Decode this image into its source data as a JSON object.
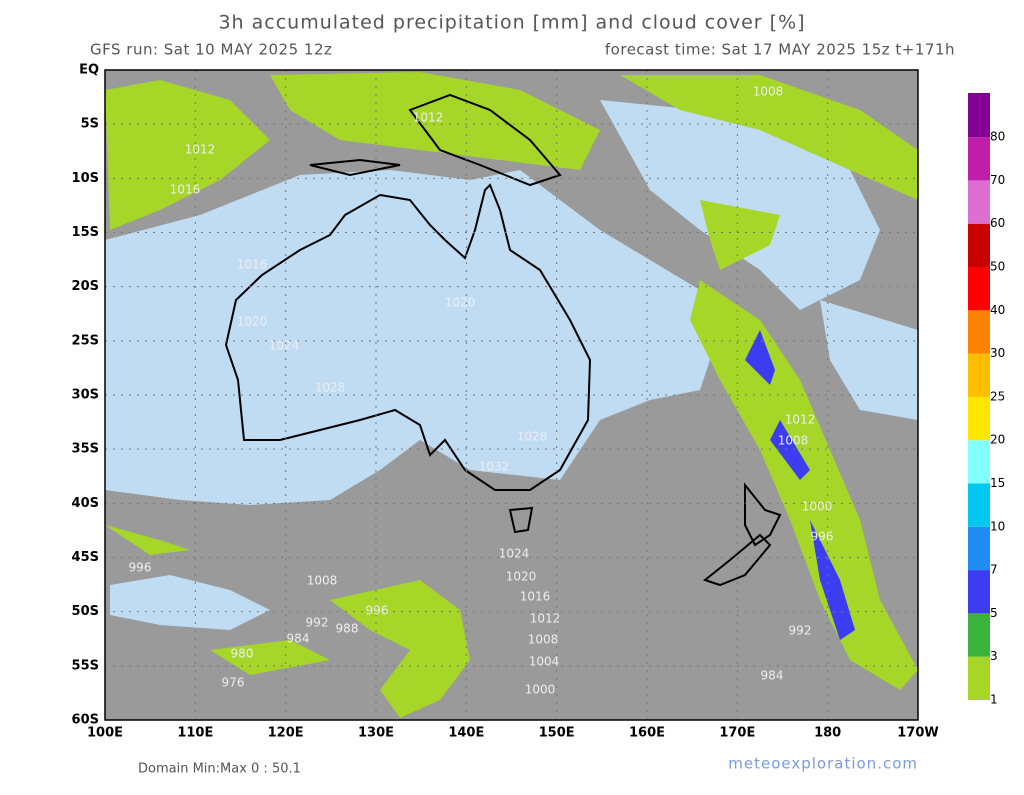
{
  "header": {
    "title": "3h accumulated precipitation [mm] and cloud cover [%]",
    "run": "GFS run: Sat 10 MAY 2025 12z",
    "forecast": "forecast time: Sat 17 MAY 2025 15z  t+171h"
  },
  "map": {
    "lat_labels": [
      "EQ",
      "5S",
      "10S",
      "15S",
      "20S",
      "25S",
      "30S",
      "35S",
      "40S",
      "45S",
      "50S",
      "55S",
      "60S"
    ],
    "lon_labels": [
      "100E",
      "110E",
      "120E",
      "130E",
      "140E",
      "150E",
      "160E",
      "170E",
      "180",
      "170W"
    ],
    "isobar_labels": [
      "1008",
      "1012",
      "1012",
      "1016",
      "1016",
      "1020",
      "1020",
      "1024",
      "1028",
      "1028",
      "1032",
      "1012",
      "1008",
      "1000",
      "996",
      "1024",
      "1020",
      "1016",
      "1012",
      "1008",
      "1004",
      "1000",
      "996",
      "1008",
      "996",
      "992",
      "988",
      "984",
      "980",
      "976",
      "984",
      "992"
    ]
  },
  "legend": {
    "levels": [
      {
        "label": "1",
        "color": "#a5d628"
      },
      {
        "label": "3",
        "color": "#3cb43c"
      },
      {
        "label": "5",
        "color": "#3c3cf0"
      },
      {
        "label": "7",
        "color": "#1e8cf0"
      },
      {
        "label": "10",
        "color": "#00c8f0"
      },
      {
        "label": "15",
        "color": "#82ffff"
      },
      {
        "label": "20",
        "color": "#ffe600"
      },
      {
        "label": "25",
        "color": "#ffbe00"
      },
      {
        "label": "30",
        "color": "#ff8200"
      },
      {
        "label": "40",
        "color": "#ff0000"
      },
      {
        "label": "50",
        "color": "#c80000"
      },
      {
        "label": "60",
        "color": "#dc6ed2"
      },
      {
        "label": "70",
        "color": "#be1eaa"
      },
      {
        "label": "80",
        "color": "#820096"
      }
    ]
  },
  "footer": {
    "domain": "Domain Min:Max 0 : 50.1",
    "credit": "meteoexploration.com"
  }
}
